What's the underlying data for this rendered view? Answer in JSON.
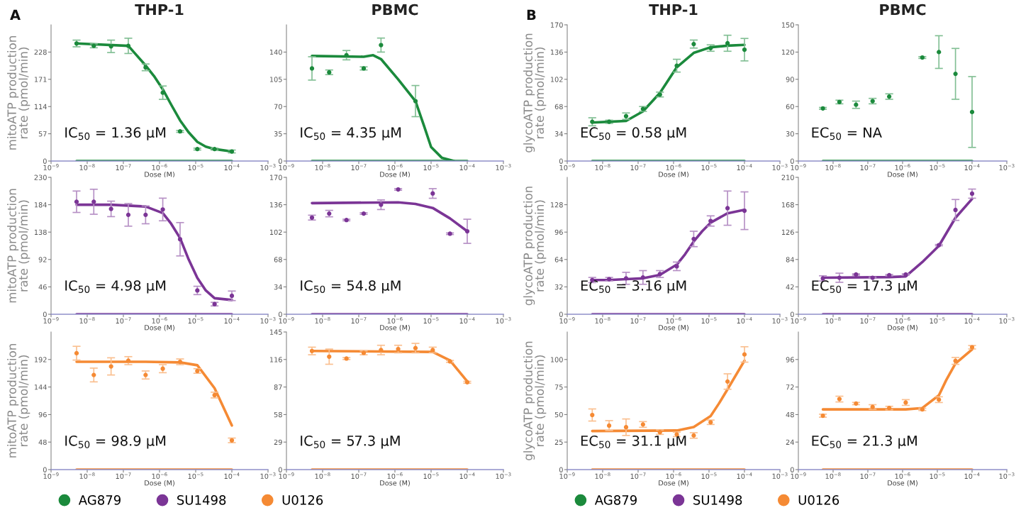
{
  "chart_data": [
    {
      "type": "scatter",
      "title": "THP-1",
      "ylabel": "mitoATP production\nrate (pmol/min)",
      "xlabel": "Dose (M)",
      "log": "x",
      "grid": false,
      "xlim": [
        1e-09,
        0.001
      ],
      "xticks": [
        {
          "value": 1e-09,
          "label": "10$^{−9}$"
        },
        {
          "value": 1e-08,
          "label": "10$^{−8}$"
        },
        {
          "value": 1e-07,
          "label": "10$^{−7}$"
        },
        {
          "value": 1e-06,
          "label": "10$^{−6}$"
        },
        {
          "value": 1e-05,
          "label": "10$^{−5}$"
        },
        {
          "value": 0.0001,
          "label": "10$^{−4}$"
        },
        {
          "value": 0.001,
          "label": "10$^{−3}$"
        }
      ],
      "ylim": [
        0,
        285
      ],
      "yticks": [
        0,
        57,
        114,
        171,
        228
      ],
      "annotations": [
        "A",
        "IC$_{50}$ = 1.36 µM"
      ],
      "series": [
        {
          "name": "AG879",
          "color": "#1b8a3c",
          "marker": "circle",
          "x": [
            5.08e-09,
            1.52e-08,
            4.57e-08,
            1.37e-07,
            4.12e-07,
            1.23e-06,
            3.7e-06,
            1.11e-05,
            3.33e-05,
            0.0001
          ],
          "values": [
            246,
            241,
            240,
            241,
            196,
            143,
            62,
            25,
            25,
            20
          ],
          "errors": [
            7,
            4,
            13,
            16,
            7,
            14,
            2,
            2,
            2,
            3
          ]
        },
        {
          "type": "line",
          "color": "#1b8a3c",
          "x": [
            5.08e-09,
            1.37e-07,
            2.1e-07,
            4.12e-07,
            7e-07,
            1.23e-06,
            2.1e-06,
            3.7e-06,
            6.4e-06,
            1.11e-05,
            1.9e-05,
            3.33e-05,
            0.0001
          ],
          "values": [
            246,
            241,
            225,
            200,
            178,
            150,
            118,
            85,
            60,
            40,
            30,
            25,
            20
          ]
        },
        {
          "type": "line",
          "color": "#1b8a3c",
          "x": [
            5.08e-09,
            0.0001
          ],
          "values": [
            0,
            0
          ]
        }
      ]
    },
    {
      "type": "scatter",
      "title": "PBMC",
      "xlabel": "Dose (M)",
      "log": "x",
      "grid": false,
      "xlim": [
        1e-09,
        0.001
      ],
      "xticks": [
        {
          "value": 1e-09,
          "label": "10$^{−9}$"
        },
        {
          "value": 1e-08,
          "label": "10$^{−8}$"
        },
        {
          "value": 1e-07,
          "label": "10$^{−7}$"
        },
        {
          "value": 1e-06,
          "label": "10$^{−6}$"
        },
        {
          "value": 1e-05,
          "label": "10$^{−5}$"
        },
        {
          "value": 0.0001,
          "label": "10$^{−4}$"
        },
        {
          "value": 0.001,
          "label": "10$^{−3}$"
        }
      ],
      "ylim": [
        0,
        175
      ],
      "yticks": [
        0,
        35,
        70,
        105,
        140
      ],
      "annotations": [
        "IC$_{50}$ = 4.35 µM"
      ],
      "series": [
        {
          "name": "AG879",
          "color": "#1b8a3c",
          "marker": "circle",
          "x": [
            5.08e-09,
            1.52e-08,
            4.57e-08,
            1.37e-07,
            4.12e-07,
            3.7e-06
          ],
          "values": [
            119,
            114,
            136,
            119,
            149,
            77
          ],
          "errors": [
            15,
            3,
            6,
            2,
            9,
            20
          ]
        },
        {
          "type": "line",
          "color": "#1b8a3c",
          "x": [
            5.08e-09,
            1.37e-07,
            2.5e-07,
            4.12e-07,
            1.23e-06,
            3.7e-06,
            6.4e-06,
            1e-05,
            2e-05,
            4.3e-05
          ],
          "values": [
            135,
            134,
            136,
            131,
            105,
            77,
            45,
            18,
            4,
            0
          ]
        },
        {
          "type": "line",
          "color": "#1b8a3c",
          "x": [
            5.08e-09,
            0.0001
          ],
          "values": [
            0,
            0
          ]
        }
      ]
    },
    {
      "type": "scatter",
      "title": "THP-1",
      "ylabel": "glycoATP production\nrate (pmol/min)",
      "xlabel": "Dose (M)",
      "log": "x",
      "grid": false,
      "xlim": [
        1e-09,
        0.001
      ],
      "xticks": [
        {
          "value": 1e-09,
          "label": "10$^{−9}$"
        },
        {
          "value": 1e-08,
          "label": "10$^{−8}$"
        },
        {
          "value": 1e-07,
          "label": "10$^{−7}$"
        },
        {
          "value": 1e-06,
          "label": "10$^{−6}$"
        },
        {
          "value": 1e-05,
          "label": "10$^{−5}$"
        },
        {
          "value": 0.0001,
          "label": "10$^{−4}$"
        },
        {
          "value": 0.001,
          "label": "10$^{−3}$"
        }
      ],
      "ylim": [
        0,
        170
      ],
      "yticks": [
        0,
        34,
        68,
        102,
        136,
        170
      ],
      "annotations": [
        "B",
        "EC$_{50}$ = 0.58 µM"
      ],
      "series": [
        {
          "name": "AG879",
          "color": "#1b8a3c",
          "marker": "circle",
          "x": [
            5.08e-09,
            1.52e-08,
            4.57e-08,
            1.37e-07,
            4.12e-07,
            1.23e-06,
            3.7e-06,
            1.11e-05,
            3.33e-05,
            0.0001
          ],
          "values": [
            49,
            49,
            56,
            65,
            83,
            119,
            146,
            141,
            147,
            139
          ],
          "errors": [
            5,
            2,
            4,
            3,
            3,
            8,
            5,
            4,
            10,
            14
          ]
        },
        {
          "type": "line",
          "color": "#1b8a3c",
          "x": [
            5.08e-09,
            1.52e-08,
            4.57e-08,
            1.37e-07,
            4.12e-07,
            1.23e-06,
            3.7e-06,
            1.11e-05,
            3.33e-05,
            0.0001
          ],
          "values": [
            48,
            49,
            50,
            62,
            85,
            117,
            135,
            142,
            144,
            145
          ]
        },
        {
          "type": "line",
          "color": "#1b8a3c",
          "x": [
            5.08e-09,
            0.0001
          ],
          "values": [
            0,
            0
          ]
        }
      ]
    },
    {
      "type": "scatter",
      "title": "PBMC",
      "xlabel": "Dose (M)",
      "log": "x",
      "grid": false,
      "xlim": [
        1e-09,
        0.001
      ],
      "xticks": [
        {
          "value": 1e-09,
          "label": "10$^{−9}$"
        },
        {
          "value": 1e-08,
          "label": "10$^{−8}$"
        },
        {
          "value": 1e-07,
          "label": "10$^{−7}$"
        },
        {
          "value": 1e-06,
          "label": "10$^{−6}$"
        },
        {
          "value": 1e-05,
          "label": "10$^{−5}$"
        },
        {
          "value": 0.0001,
          "label": "10$^{−4}$"
        },
        {
          "value": 0.001,
          "label": "10$^{−3}$"
        }
      ],
      "ylim": [
        0,
        150
      ],
      "yticks": [
        0,
        30,
        60,
        90,
        120,
        150
      ],
      "annotations": [
        "EC$_{50}$ = NA"
      ],
      "series": [
        {
          "name": "AG879",
          "color": "#1b8a3c",
          "marker": "circle",
          "x": [
            5.08e-09,
            1.52e-08,
            4.57e-08,
            1.37e-07,
            4.12e-07,
            3.7e-06,
            1.11e-05,
            3.33e-05,
            0.0001
          ],
          "values": [
            58,
            65,
            62,
            66,
            71,
            114,
            120,
            96,
            54
          ],
          "errors": [
            1,
            2,
            4,
            3,
            3,
            1,
            18,
            28,
            39
          ]
        },
        {
          "type": "line",
          "color": "#1b8a3c",
          "x": [
            5.08e-09,
            0.0001
          ],
          "values": [
            0,
            0
          ]
        }
      ]
    },
    {
      "type": "scatter",
      "ylabel": "mitoATP production\nrate (pmol/min)",
      "xlabel": "Dose (M)",
      "log": "x",
      "grid": false,
      "xlim": [
        1e-09,
        0.001
      ],
      "xticks": [
        {
          "value": 1e-09,
          "label": "10$^{−9}$"
        },
        {
          "value": 1e-08,
          "label": "10$^{−8}$"
        },
        {
          "value": 1e-07,
          "label": "10$^{−7}$"
        },
        {
          "value": 1e-06,
          "label": "10$^{−6}$"
        },
        {
          "value": 1e-05,
          "label": "10$^{−5}$"
        },
        {
          "value": 0.0001,
          "label": "10$^{−4}$"
        },
        {
          "value": 0.001,
          "label": "10$^{−3}$"
        }
      ],
      "ylim": [
        0,
        230
      ],
      "yticks": [
        0,
        46,
        92,
        138,
        184,
        230
      ],
      "annotations": [
        "IC$_{50}$ = 4.98 µM"
      ],
      "series": [
        {
          "name": "SU1498",
          "color": "#7b3596",
          "marker": "circle",
          "x": [
            5.08e-09,
            1.52e-08,
            4.57e-08,
            1.37e-07,
            4.12e-07,
            1.23e-06,
            3.7e-06,
            1.11e-05,
            3.33e-05,
            0.0001
          ],
          "values": [
            189,
            189,
            177,
            167,
            167,
            176,
            126,
            40,
            17,
            31
          ],
          "errors": [
            18,
            21,
            13,
            19,
            15,
            19,
            28,
            7,
            3,
            8
          ]
        },
        {
          "type": "line",
          "color": "#7b3596",
          "x": [
            5.08e-09,
            4.57e-08,
            4.12e-07,
            1.23e-06,
            2.1e-06,
            3.7e-06,
            6.4e-06,
            1.11e-05,
            1.9e-05,
            3.33e-05,
            0.0001
          ],
          "values": [
            184,
            184,
            181,
            170,
            152,
            128,
            92,
            61,
            40,
            27,
            24
          ]
        },
        {
          "type": "line",
          "color": "#7b3596",
          "x": [
            5.08e-09,
            0.0001
          ],
          "values": [
            0,
            0
          ]
        }
      ]
    },
    {
      "type": "scatter",
      "xlabel": "Dose (M)",
      "log": "x",
      "grid": false,
      "xlim": [
        1e-09,
        0.001
      ],
      "xticks": [
        {
          "value": 1e-09,
          "label": "10$^{−9}$"
        },
        {
          "value": 1e-08,
          "label": "10$^{−8}$"
        },
        {
          "value": 1e-07,
          "label": "10$^{−7}$"
        },
        {
          "value": 1e-06,
          "label": "10$^{−6}$"
        },
        {
          "value": 1e-05,
          "label": "10$^{−5}$"
        },
        {
          "value": 0.0001,
          "label": "10$^{−4}$"
        },
        {
          "value": 0.001,
          "label": "10$^{−3}$"
        }
      ],
      "ylim": [
        0,
        170
      ],
      "yticks": [
        0,
        34,
        68,
        102,
        136,
        170
      ],
      "annotations": [
        "IC$_{50}$ = 54.8 µM"
      ],
      "series": [
        {
          "name": "SU1498",
          "color": "#7b3596",
          "marker": "circle",
          "x": [
            5.08e-09,
            1.52e-08,
            4.57e-08,
            1.37e-07,
            4.12e-07,
            1.23e-06,
            1.11e-05,
            3.33e-05,
            0.0001
          ],
          "values": [
            120,
            125,
            117,
            125,
            136,
            155,
            150,
            100,
            103
          ],
          "errors": [
            3,
            4,
            1,
            1,
            6,
            1,
            6,
            1,
            15
          ]
        },
        {
          "type": "line",
          "color": "#7b3596",
          "x": [
            5.08e-09,
            1.23e-06,
            3.7e-06,
            1.11e-05,
            3.33e-05,
            0.0001
          ],
          "values": [
            138,
            139,
            137,
            132,
            119,
            103
          ]
        },
        {
          "type": "line",
          "color": "#7b3596",
          "x": [
            5.08e-09,
            0.0001
          ],
          "values": [
            0,
            0
          ]
        }
      ]
    },
    {
      "type": "scatter",
      "ylabel": "glycoATP production\nrate (pmol/min)",
      "xlabel": "Dose (M)",
      "log": "x",
      "grid": false,
      "xlim": [
        1e-09,
        0.001
      ],
      "xticks": [
        {
          "value": 1e-09,
          "label": "10$^{−9}$"
        },
        {
          "value": 1e-08,
          "label": "10$^{−8}$"
        },
        {
          "value": 1e-07,
          "label": "10$^{−7}$"
        },
        {
          "value": 1e-06,
          "label": "10$^{−6}$"
        },
        {
          "value": 1e-05,
          "label": "10$^{−5}$"
        },
        {
          "value": 0.0001,
          "label": "10$^{−4}$"
        },
        {
          "value": 0.001,
          "label": "10$^{−3}$"
        }
      ],
      "ylim": [
        0,
        160
      ],
      "yticks": [
        0,
        32,
        64,
        96,
        128
      ],
      "annotations": [
        "EC$_{50}$ = 3.16 µM"
      ],
      "series": [
        {
          "name": "SU1498",
          "color": "#7b3596",
          "marker": "circle",
          "x": [
            5.08e-09,
            1.52e-08,
            4.57e-08,
            1.37e-07,
            4.12e-07,
            1.23e-06,
            3.7e-06,
            1.11e-05,
            3.33e-05,
            0.0001
          ],
          "values": [
            40,
            41,
            42,
            43,
            47,
            56,
            88,
            109,
            124,
            121
          ],
          "errors": [
            3,
            2,
            7,
            8,
            4,
            5,
            9,
            6,
            20,
            22
          ]
        },
        {
          "type": "line",
          "color": "#7b3596",
          "x": [
            5.08e-09,
            1.52e-08,
            4.57e-08,
            1.37e-07,
            4.12e-07,
            1.23e-06,
            2.1e-06,
            3.7e-06,
            6.4e-06,
            1.11e-05,
            3.33e-05,
            0.0001
          ],
          "values": [
            40,
            40,
            41,
            42,
            46,
            58,
            70,
            85,
            97,
            107,
            118,
            122
          ]
        },
        {
          "type": "line",
          "color": "#7b3596",
          "x": [
            5.08e-09,
            0.0001
          ],
          "values": [
            0,
            0
          ]
        }
      ]
    },
    {
      "type": "scatter",
      "xlabel": "Dose (M)",
      "log": "x",
      "grid": false,
      "xlim": [
        1e-09,
        0.001
      ],
      "xticks": [
        {
          "value": 1e-09,
          "label": "10$^{−9}$"
        },
        {
          "value": 1e-08,
          "label": "10$^{−8}$"
        },
        {
          "value": 1e-07,
          "label": "10$^{−7}$"
        },
        {
          "value": 1e-06,
          "label": "10$^{−6}$"
        },
        {
          "value": 1e-05,
          "label": "10$^{−5}$"
        },
        {
          "value": 0.0001,
          "label": "10$^{−4}$"
        },
        {
          "value": 0.001,
          "label": "10$^{−3}$"
        }
      ],
      "ylim": [
        0,
        210
      ],
      "yticks": [
        0,
        42,
        84,
        126,
        168,
        210
      ],
      "annotations": [
        "EC$_{50}$ = 17.3 µM"
      ],
      "series": [
        {
          "name": "SU1498",
          "color": "#7b3596",
          "marker": "circle",
          "x": [
            5.08e-09,
            1.52e-08,
            4.57e-08,
            1.37e-07,
            4.12e-07,
            1.23e-06,
            1.11e-05,
            3.33e-05,
            0.0001
          ],
          "values": [
            55,
            56,
            61,
            56,
            60,
            61,
            106,
            160,
            185
          ],
          "errors": [
            4,
            7,
            1,
            1,
            1,
            1,
            1,
            16,
            7
          ]
        },
        {
          "type": "line",
          "color": "#7b3596",
          "x": [
            5.08e-09,
            4.12e-07,
            1.23e-06,
            3.7e-06,
            1.11e-05,
            3.33e-05,
            0.0001
          ],
          "values": [
            56,
            57,
            58,
            80,
            105,
            148,
            177
          ]
        },
        {
          "type": "line",
          "color": "#7b3596",
          "x": [
            5.08e-09,
            0.0001
          ],
          "values": [
            0,
            0
          ]
        }
      ]
    },
    {
      "type": "scatter",
      "ylabel": "mitoATP production\nrate (pmol/min)",
      "xlabel": "Dose (M)",
      "log": "x",
      "grid": false,
      "legend": "bottom",
      "xlim": [
        1e-09,
        0.001
      ],
      "xticks": [
        {
          "value": 1e-09,
          "label": "10$^{−9}$"
        },
        {
          "value": 1e-08,
          "label": "10$^{−8}$"
        },
        {
          "value": 1e-07,
          "label": "10$^{−7}$"
        },
        {
          "value": 1e-06,
          "label": "10$^{−6}$"
        },
        {
          "value": 1e-05,
          "label": "10$^{−5}$"
        },
        {
          "value": 0.0001,
          "label": "10$^{−4}$"
        },
        {
          "value": 0.001,
          "label": "10$^{−3}$"
        }
      ],
      "ylim": [
        0,
        240
      ],
      "yticks": [
        0,
        48,
        96,
        144,
        192
      ],
      "annotations": [
        "IC$_{50}$ = 98.9 µM"
      ],
      "series": [
        {
          "name": "U0126",
          "color": "#f58a34",
          "marker": "circle",
          "x": [
            5.08e-09,
            1.52e-08,
            4.57e-08,
            1.37e-07,
            4.12e-07,
            1.23e-06,
            3.7e-06,
            1.11e-05,
            3.33e-05,
            0.0001
          ],
          "values": [
            203,
            165,
            180,
            190,
            165,
            176,
            188,
            172,
            130,
            51
          ],
          "errors": [
            12,
            12,
            15,
            7,
            7,
            7,
            5,
            4,
            5,
            4
          ]
        },
        {
          "type": "line",
          "color": "#f58a34",
          "x": [
            5.08e-09,
            4.12e-07,
            3.7e-06,
            1.11e-05,
            3.33e-05,
            0.0001
          ],
          "values": [
            188,
            188,
            187,
            182,
            142,
            77
          ]
        },
        {
          "type": "line",
          "color": "#f58a34",
          "x": [
            5.08e-09,
            0.0001
          ],
          "values": [
            0,
            0
          ]
        }
      ]
    },
    {
      "type": "scatter",
      "xlabel": "Dose (M)",
      "log": "x",
      "grid": false,
      "xlim": [
        1e-09,
        0.001
      ],
      "xticks": [
        {
          "value": 1e-09,
          "label": "10$^{−9}$"
        },
        {
          "value": 1e-08,
          "label": "10$^{−8}$"
        },
        {
          "value": 1e-07,
          "label": "10$^{−7}$"
        },
        {
          "value": 1e-06,
          "label": "10$^{−6}$"
        },
        {
          "value": 1e-05,
          "label": "10$^{−5}$"
        },
        {
          "value": 0.0001,
          "label": "10$^{−4}$"
        },
        {
          "value": 0.001,
          "label": "10$^{−3}$"
        }
      ],
      "ylim": [
        0,
        145
      ],
      "yticks": [
        0,
        29,
        58,
        87,
        116,
        145
      ],
      "annotations": [
        "IC$_{50}$ = 57.3 µM"
      ],
      "series": [
        {
          "name": "U0126",
          "color": "#f58a34",
          "marker": "circle",
          "x": [
            5.08e-09,
            1.52e-08,
            4.57e-08,
            1.37e-07,
            4.12e-07,
            1.23e-06,
            3.7e-06,
            1.11e-05,
            3.33e-05,
            0.0001
          ],
          "values": [
            125,
            119,
            117,
            123,
            126,
            127,
            128,
            126,
            114,
            92
          ],
          "errors": [
            4,
            8,
            1,
            2,
            5,
            4,
            5,
            3,
            1,
            1
          ]
        },
        {
          "type": "line",
          "color": "#f58a34",
          "x": [
            5.08e-09,
            1.11e-05,
            3.33e-05,
            0.0001
          ],
          "values": [
            125,
            124,
            115,
            93
          ]
        },
        {
          "type": "line",
          "color": "#f58a34",
          "x": [
            5.08e-09,
            0.0001
          ],
          "values": [
            0,
            0
          ]
        }
      ]
    },
    {
      "type": "scatter",
      "ylabel": "glycoATP production\nrate (pmol/min)",
      "xlabel": "Dose (M)",
      "log": "x",
      "grid": false,
      "legend": "bottom",
      "xlim": [
        1e-09,
        0.001
      ],
      "xticks": [
        {
          "value": 1e-09,
          "label": "10$^{−9}$"
        },
        {
          "value": 1e-08,
          "label": "10$^{−8}$"
        },
        {
          "value": 1e-07,
          "label": "10$^{−7}$"
        },
        {
          "value": 1e-06,
          "label": "10$^{−6}$"
        },
        {
          "value": 1e-05,
          "label": "10$^{−5}$"
        },
        {
          "value": 0.0001,
          "label": "10$^{−4}$"
        },
        {
          "value": 0.001,
          "label": "10$^{−3}$"
        }
      ],
      "ylim": [
        0,
        125
      ],
      "yticks": [
        0,
        25,
        50,
        75,
        100
      ],
      "annotations": [
        "EC$_{50}$ = 31.1 µM"
      ],
      "series": [
        {
          "name": "U0126",
          "color": "#f58a34",
          "marker": "circle",
          "x": [
            5.08e-09,
            1.52e-08,
            4.57e-08,
            1.37e-07,
            4.12e-07,
            1.23e-06,
            3.7e-06,
            1.11e-05,
            3.33e-05,
            0.0001
          ],
          "values": [
            49.6,
            40,
            38.5,
            41,
            34,
            32,
            31,
            43,
            80,
            104.6
          ],
          "errors": [
            5.5,
            4.5,
            7.5,
            2.6,
            2,
            2,
            2.5,
            2,
            7,
            7
          ]
        },
        {
          "type": "line",
          "color": "#f58a34",
          "x": [
            5.08e-09,
            1.23e-06,
            3.7e-06,
            1.11e-05,
            1.9e-05,
            3.33e-05,
            0.0001
          ],
          "values": [
            35,
            35.5,
            38.7,
            48.6,
            60,
            73,
            99
          ]
        },
        {
          "type": "line",
          "color": "#f58a34",
          "x": [
            5.08e-09,
            0.0001
          ],
          "values": [
            0,
            0
          ]
        }
      ]
    },
    {
      "type": "scatter",
      "xlabel": "Dose (M)",
      "log": "x",
      "grid": false,
      "xlim": [
        1e-09,
        0.001
      ],
      "xticks": [
        {
          "value": 1e-09,
          "label": "10$^{−9}$"
        },
        {
          "value": 1e-08,
          "label": "10$^{−8}$"
        },
        {
          "value": 1e-07,
          "label": "10$^{−7}$"
        },
        {
          "value": 1e-06,
          "label": "10$^{−6}$"
        },
        {
          "value": 1e-05,
          "label": "10$^{−5}$"
        },
        {
          "value": 0.0001,
          "label": "10$^{−4}$"
        },
        {
          "value": 0.001,
          "label": "10$^{−3}$"
        }
      ],
      "ylim": [
        0,
        120
      ],
      "yticks": [
        0,
        24,
        48,
        72,
        96
      ],
      "annotations": [
        "EC$_{50}$ = 21.3 µM"
      ],
      "series": [
        {
          "name": "U0126",
          "color": "#f58a34",
          "marker": "circle",
          "x": [
            5.08e-09,
            1.52e-08,
            4.57e-08,
            1.37e-07,
            4.12e-07,
            1.23e-06,
            3.7e-06,
            1.11e-05,
            3.33e-05,
            0.0001
          ],
          "values": [
            47,
            61.5,
            57.6,
            54.6,
            53.7,
            58.5,
            52.5,
            61,
            94.8,
            106.7
          ],
          "errors": [
            1.3,
            2.5,
            1,
            2,
            1.5,
            2.5,
            1,
            2.5,
            3,
            1.5
          ]
        },
        {
          "type": "line",
          "color": "#f58a34",
          "x": [
            5.08e-09,
            1.23e-06,
            3.7e-06,
            1.11e-05,
            1.8e-05,
            3.33e-05,
            0.0001
          ],
          "values": [
            52.5,
            52.5,
            53.7,
            64.8,
            78,
            92.5,
            104.8
          ]
        },
        {
          "type": "line",
          "color": "#f58a34",
          "x": [
            5.08e-09,
            0.0001
          ],
          "values": [
            0,
            0
          ]
        }
      ]
    }
  ]
}
